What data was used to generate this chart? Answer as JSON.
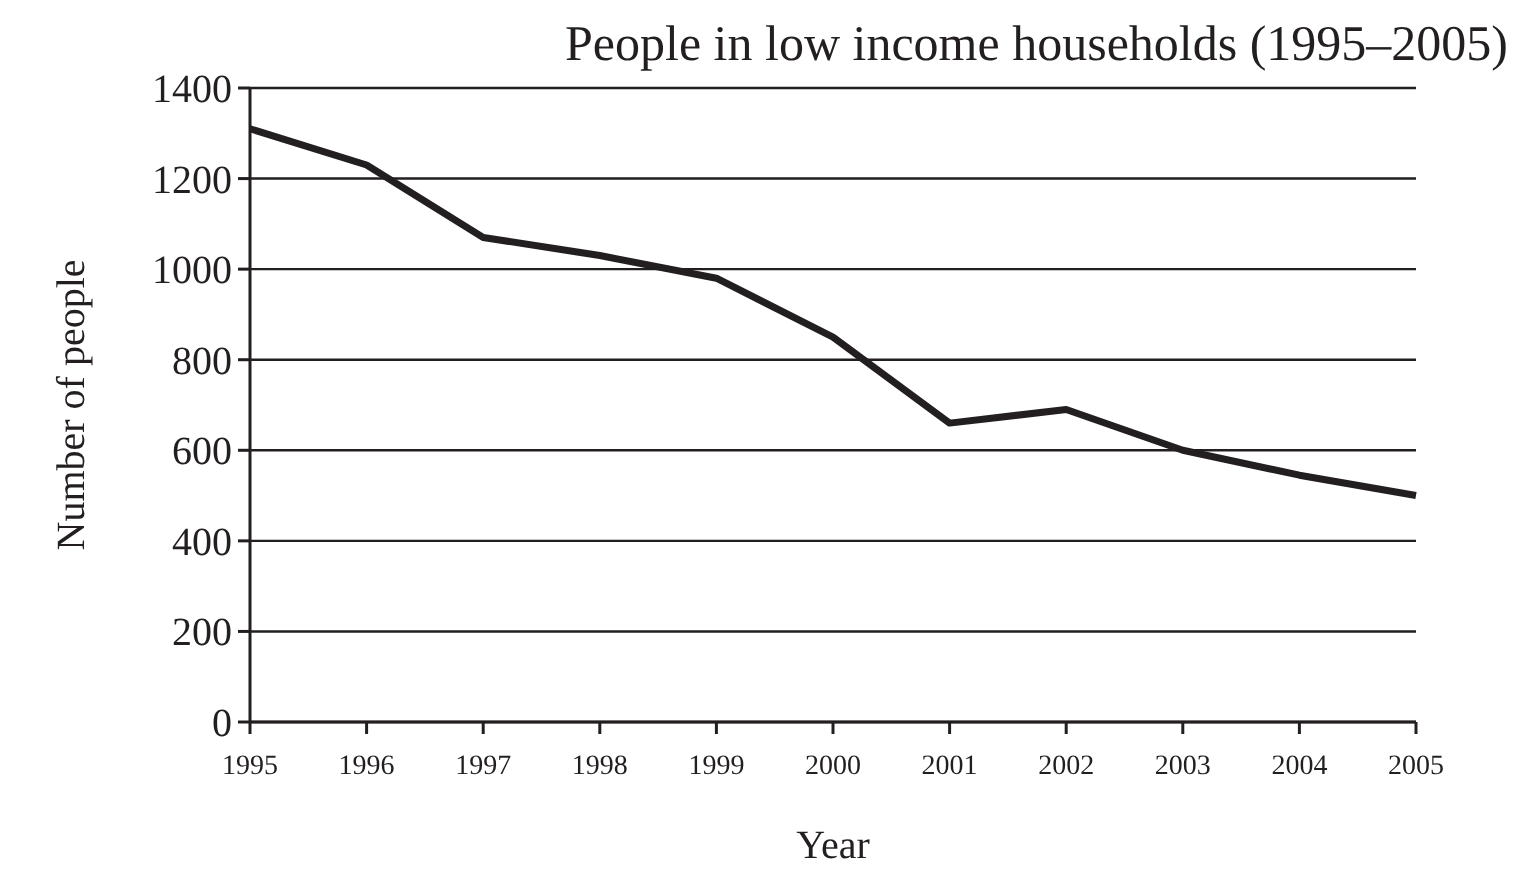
{
  "chart_data": {
    "type": "line",
    "title": "People in low income households (1995–2005)",
    "xlabel": "Year",
    "ylabel": "Number of people",
    "x": [
      1995,
      1996,
      1997,
      1998,
      1999,
      2000,
      2001,
      2002,
      2003,
      2004,
      2005
    ],
    "series": [
      {
        "color": "#231f20",
        "values": [
          1310,
          1230,
          1070,
          1030,
          980,
          850,
          660,
          690,
          600,
          545,
          500
        ]
      }
    ],
    "xlim": [
      1995,
      2005
    ],
    "xticks": [
      1995,
      1996,
      1997,
      1998,
      1999,
      2000,
      2001,
      2002,
      2003,
      2004,
      2005
    ],
    "ylim": [
      0,
      1400
    ],
    "yticks": [
      0,
      200,
      400,
      600,
      800,
      1000,
      1200,
      1400
    ],
    "grid": "y",
    "marker": "none",
    "line_style": "solid"
  }
}
